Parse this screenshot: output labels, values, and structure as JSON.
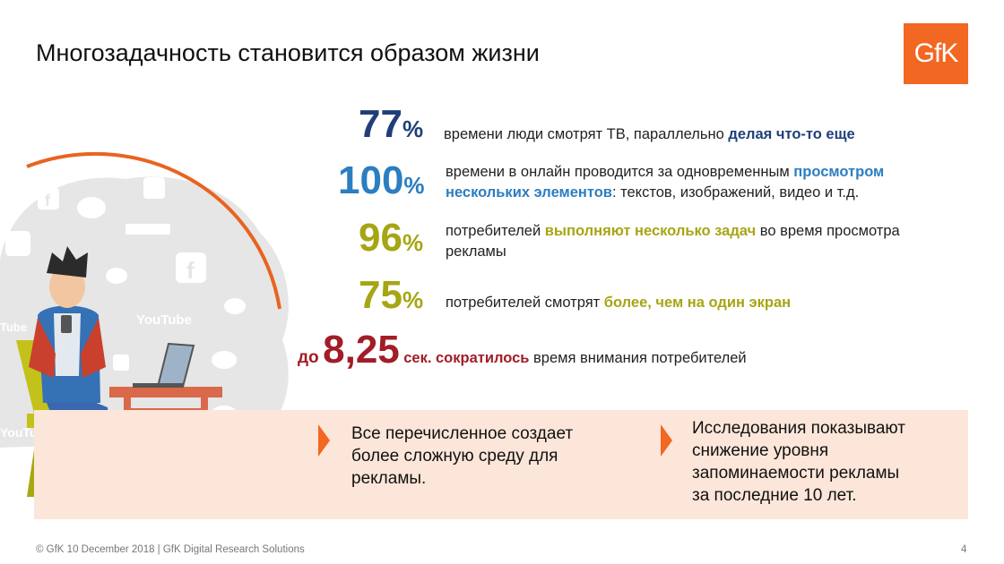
{
  "title": "Многозадачность становится образом жизни",
  "logo_text": "GfK",
  "illustration": {
    "labels": {
      "youtube_1": "YouTube",
      "youtube_2": "Tube",
      "youtube_3": "YouTube"
    },
    "icons": [
      "facebook-icon",
      "chat-icon",
      "twitter-icon",
      "youtube-icon",
      "snapchat-icon",
      "rss-icon",
      "search-icon"
    ]
  },
  "stats": [
    {
      "num": "77",
      "pct": "%",
      "text": [
        {
          "t": "времени люди смотрят ТВ, параллельно ",
          "c": ""
        },
        {
          "t": "делая что-то еще",
          "c": "navy"
        }
      ]
    },
    {
      "num": "100",
      "pct": "%",
      "line1": [
        {
          "t": "времени в онлайн проводится за одновременным  ",
          "c": ""
        },
        {
          "t": "просмотром",
          "c": "blue"
        }
      ],
      "line2": [
        {
          "t": "нескольких элементов",
          "c": "blue"
        },
        {
          "t": ": текстов, изображений, видео и т.д.",
          "c": ""
        }
      ]
    },
    {
      "num": "96",
      "pct": "%",
      "line1": [
        {
          "t": "потребителей ",
          "c": ""
        },
        {
          "t": "выполняют несколько задач",
          "c": "olive"
        },
        {
          "t": " во время просмотра",
          "c": ""
        }
      ],
      "line2": [
        {
          "t": "рекламы",
          "c": ""
        }
      ]
    },
    {
      "num": "75",
      "pct": "%",
      "text": [
        {
          "t": "потребителей смотрят ",
          "c": ""
        },
        {
          "t": "более, чем на один экран",
          "c": "olive"
        }
      ]
    },
    {
      "prefix": "до",
      "num": "8,25",
      "unit": "сек. сократилось",
      "rest": " время внимания потребителей"
    }
  ],
  "panel": {
    "left_text": [
      "Все перечисленное создает",
      "более сложную среду для",
      "рекламы."
    ],
    "right_text": [
      "Исследования показывают",
      "снижение уровня",
      "запоминаемости рекламы",
      "за последние 10 лет."
    ]
  },
  "footer": "© GfK 10 December 2018 | GfK Digital Research Solutions",
  "page_number": "4",
  "colors": {
    "accent": "#f26722",
    "navy": "#1f3f7a",
    "blue": "#2b7ec1",
    "olive": "#a6a514",
    "red": "#a11d27",
    "panel": "#fce6d9"
  }
}
